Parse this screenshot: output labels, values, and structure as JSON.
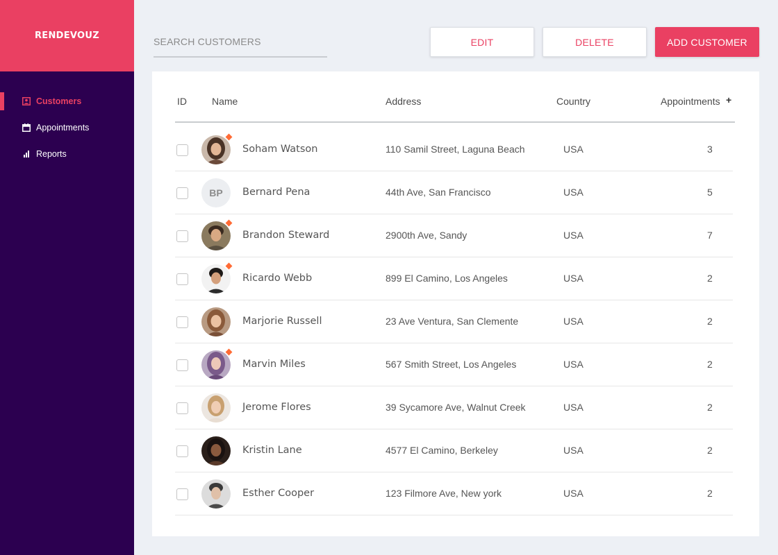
{
  "app": {
    "brand": "RENDEVOUZ"
  },
  "sidebar": {
    "items": [
      {
        "label": "Customers",
        "icon": "portrait-icon",
        "active": true
      },
      {
        "label": "Appointments",
        "icon": "calendar-icon",
        "active": false
      },
      {
        "label": "Reports",
        "icon": "bar-chart-icon",
        "active": false
      }
    ]
  },
  "toolbar": {
    "search_placeholder": "SEARCH CUSTOMERS",
    "edit_label": "EDIT",
    "delete_label": "DELETE",
    "add_label": "ADD CUSTOMER"
  },
  "table": {
    "headers": {
      "id": "ID",
      "name": "Name",
      "address": "Address",
      "country": "Country",
      "appointments": "Appointments",
      "add": "+"
    },
    "rows": [
      {
        "name": "Soham Watson",
        "address": "110 Samil Street, Laguna Beach",
        "country": "USA",
        "appointments": "3",
        "avatar": "photo",
        "badge": true
      },
      {
        "name": "Bernard Pena",
        "address": "44th Ave, San Francisco",
        "country": "USA",
        "appointments": "5",
        "avatar": "initials",
        "initials": "BP",
        "badge": false
      },
      {
        "name": "Brandon Steward",
        "address": "2900th Ave, Sandy",
        "country": "USA",
        "appointments": "7",
        "avatar": "photo",
        "badge": true
      },
      {
        "name": "Ricardo Webb",
        "address": "899 El Camino, Los Angeles",
        "country": "USA",
        "appointments": "2",
        "avatar": "photo",
        "badge": true
      },
      {
        "name": "Marjorie Russell",
        "address": "23 Ave Ventura,  San Clemente",
        "country": "USA",
        "appointments": "2",
        "avatar": "photo",
        "badge": false
      },
      {
        "name": "Marvin Miles",
        "address": "567 Smith Street, Los Angeles",
        "country": "USA",
        "appointments": "2",
        "avatar": "photo",
        "badge": true
      },
      {
        "name": "Jerome Flores",
        "address": "39 Sycamore Ave, Walnut Creek",
        "country": "USA",
        "appointments": "2",
        "avatar": "photo",
        "badge": false
      },
      {
        "name": "Kristin Lane",
        "address": "4577 El Camino, Berkeley",
        "country": "USA",
        "appointments": "2",
        "avatar": "photo",
        "badge": false
      },
      {
        "name": "Esther Cooper",
        "address": "123 Filmore Ave, New york",
        "country": "USA",
        "appointments": "2",
        "avatar": "photo",
        "badge": false
      }
    ]
  },
  "colors": {
    "accent": "#ea4062",
    "sidebar_bg": "#2c0050",
    "page_bg": "#edf0f5",
    "badge": "#ff6b35"
  }
}
